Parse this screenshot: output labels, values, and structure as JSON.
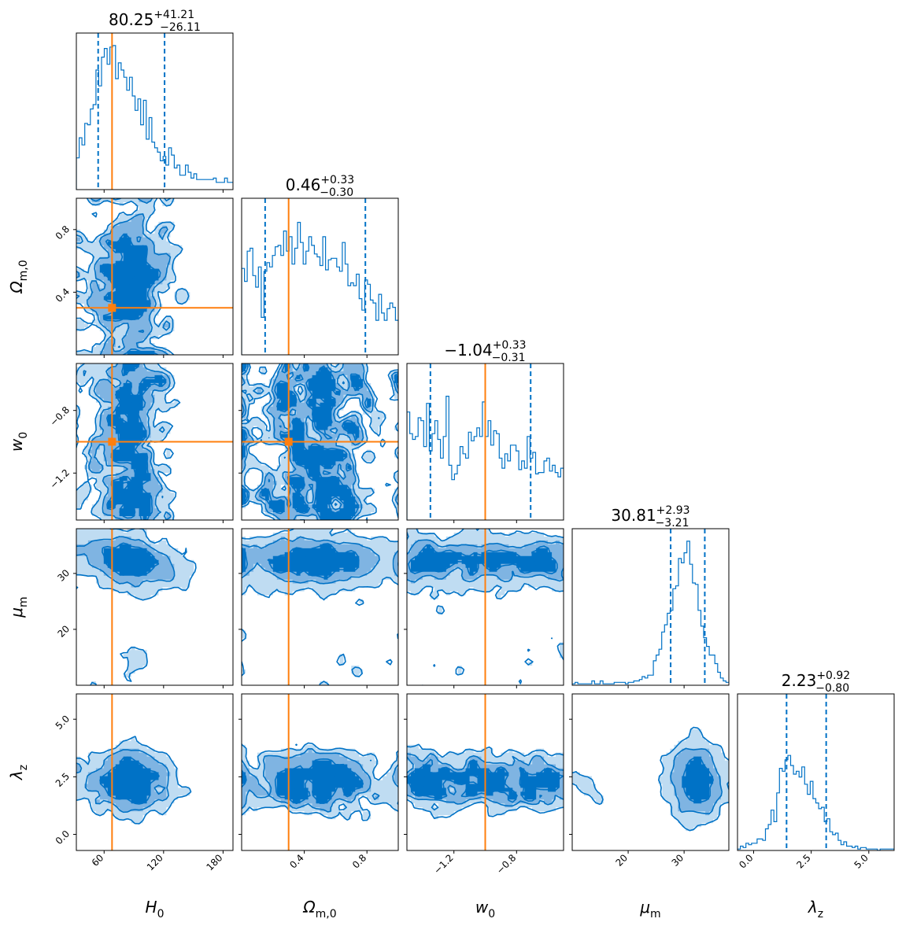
{
  "chart_data": {
    "type": "corner",
    "parameters": [
      {
        "symbol": "H",
        "sub": "0",
        "range": [
          32,
          190
        ],
        "ticks": [
          {
            "v": 60,
            "label": "60"
          },
          {
            "v": 120,
            "label": "120"
          },
          {
            "v": 180,
            "label": "180"
          }
        ],
        "truth": 68,
        "title": {
          "median": "80.25",
          "plus": "+41.21",
          "minus": "−26.11"
        },
        "q16": 54,
        "q84": 121
      },
      {
        "symbol": "Ω",
        "sub": "m,0",
        "range": [
          0.0,
          1.0
        ],
        "ticks": [
          {
            "v": 0.4,
            "label": "0.4"
          },
          {
            "v": 0.8,
            "label": "0.8"
          }
        ],
        "truth": 0.3,
        "title": {
          "median": "0.46",
          "plus": "+0.33",
          "minus": "−0.30"
        },
        "q16": 0.15,
        "q84": 0.79
      },
      {
        "symbol": "w",
        "sub": "0",
        "range": [
          -1.5,
          -0.5
        ],
        "ticks": [
          {
            "v": -1.2,
            "label": "−1.2"
          },
          {
            "v": -0.8,
            "label": "−0.8"
          }
        ],
        "truth": -1.0,
        "title": {
          "median": "−1.04",
          "plus": "+0.33",
          "minus": "−0.31"
        },
        "q16": -1.35,
        "q84": -0.71
      },
      {
        "symbol": "μ",
        "sub": "m",
        "range": [
          10,
          38
        ],
        "ticks": [
          {
            "v": 20,
            "label": "20"
          },
          {
            "v": 30,
            "label": "30"
          }
        ],
        "truth": null,
        "title": {
          "median": "30.81",
          "plus": "+2.93",
          "minus": "−3.21"
        },
        "q16": 27.6,
        "q84": 33.7
      },
      {
        "symbol": "λ",
        "sub": "z",
        "range": [
          -0.7,
          6.1
        ],
        "ticks": [
          {
            "v": 0.0,
            "label": "0.0"
          },
          {
            "v": 2.5,
            "label": "2.5"
          },
          {
            "v": 5.0,
            "label": "5.0"
          }
        ],
        "truth": null,
        "title": {
          "median": "2.23",
          "plus": "+0.92",
          "minus": "−0.80"
        },
        "q16": 1.43,
        "q84": 3.15
      }
    ],
    "histograms": [
      [
        0.22,
        0.36,
        0.31,
        0.46,
        0.45,
        0.56,
        0.59,
        0.83,
        0.72,
        0.92,
        0.98,
        0.87,
        0.99,
        1.0,
        0.77,
        0.88,
        0.83,
        0.78,
        0.69,
        0.78,
        0.65,
        0.55,
        0.63,
        0.45,
        0.62,
        0.35,
        0.5,
        0.33,
        0.29,
        0.26,
        0.2,
        0.23,
        0.17,
        0.29,
        0.24,
        0.15,
        0.17,
        0.1,
        0.1,
        0.17,
        0.12,
        0.08,
        0.11,
        0.07,
        0.07,
        0.07,
        0.07,
        0.07,
        0.07,
        0.08,
        0.05,
        0.05,
        0.05,
        0.08,
        0.05,
        0.05
      ],
      [
        0.6,
        0.51,
        0.72,
        0.74,
        0.55,
        0.47,
        0.61,
        0.26,
        0.58,
        0.64,
        0.61,
        0.69,
        0.75,
        0.76,
        0.69,
        0.86,
        0.72,
        0.82,
        0.63,
        0.74,
        0.92,
        0.78,
        0.63,
        0.72,
        0.82,
        0.76,
        0.7,
        0.68,
        0.62,
        0.82,
        0.59,
        0.66,
        0.67,
        0.67,
        0.61,
        0.58,
        0.78,
        0.63,
        0.48,
        0.5,
        0.48,
        0.56,
        0.39,
        0.31,
        0.52,
        0.49,
        0.38,
        0.36,
        0.24,
        0.42,
        0.29,
        0.24,
        0.32,
        0.36,
        0.33,
        0.24
      ],
      [
        0.75,
        0.6,
        0.56,
        0.58,
        0.71,
        0.69,
        0.51,
        0.81,
        0.48,
        0.6,
        0.69,
        0.56,
        0.43,
        0.58,
        0.86,
        0.38,
        0.28,
        0.32,
        0.38,
        0.51,
        0.46,
        0.43,
        0.61,
        0.55,
        0.58,
        0.64,
        0.58,
        0.82,
        0.58,
        0.69,
        0.52,
        0.62,
        0.6,
        0.43,
        0.36,
        0.46,
        0.41,
        0.52,
        0.52,
        0.48,
        0.35,
        0.41,
        0.36,
        0.58,
        0.43,
        0.47,
        0.32,
        0.33,
        0.33,
        0.41,
        0.43,
        0.34,
        0.38,
        0.33,
        0.3,
        0.36
      ],
      [
        0.01,
        0.02,
        0.01,
        0.01,
        0.01,
        0.01,
        0.01,
        0.03,
        0.01,
        0.01,
        0.03,
        0.01,
        0.01,
        0.01,
        0.01,
        0.02,
        0.02,
        0.02,
        0.02,
        0.01,
        0.02,
        0.02,
        0.03,
        0.03,
        0.04,
        0.06,
        0.05,
        0.07,
        0.07,
        0.17,
        0.21,
        0.25,
        0.37,
        0.42,
        0.5,
        0.52,
        0.67,
        0.69,
        0.88,
        0.85,
        0.92,
        1.0,
        0.84,
        0.71,
        0.7,
        0.52,
        0.41,
        0.33,
        0.27,
        0.21,
        0.21,
        0.15,
        0.09,
        0.05,
        0.03,
        0.02
      ],
      [
        0.01,
        0.03,
        0.02,
        0.05,
        0.04,
        0.05,
        0.05,
        0.08,
        0.08,
        0.07,
        0.15,
        0.18,
        0.28,
        0.2,
        0.4,
        0.57,
        0.55,
        0.63,
        0.66,
        0.59,
        0.53,
        0.55,
        0.51,
        0.58,
        0.46,
        0.39,
        0.48,
        0.36,
        0.33,
        0.29,
        0.3,
        0.2,
        0.22,
        0.13,
        0.11,
        0.12,
        0.07,
        0.04,
        0.06,
        0.03,
        0.03,
        0.02,
        0.03,
        0.01,
        0.02,
        0.02,
        0.01,
        0.01,
        0.01,
        0.01,
        0.0,
        0.01,
        0.01,
        0.01,
        0.01,
        0.01
      ]
    ],
    "contour_levels": [
      "0.5σ",
      "1σ",
      "1.5σ",
      "2σ"
    ],
    "colors": {
      "contour_line": "#0072c6",
      "fill_level1": "#bfdcf2",
      "fill_level2": "#7fb4e2",
      "fill_level3": "#0072c6",
      "truth": "#ff7f0e",
      "quantile": "#0072c6",
      "axes": "#000000"
    },
    "grid": false,
    "legend": "none"
  }
}
